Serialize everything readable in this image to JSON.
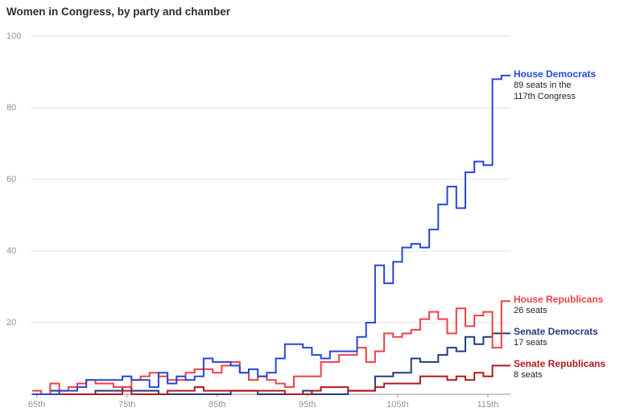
{
  "chart_data": {
    "type": "line",
    "subtype": "step",
    "title": "Women in Congress, by party and chamber",
    "xlabel": "",
    "ylabel": "",
    "x_range": [
      65,
      117
    ],
    "ylim": [
      0,
      100
    ],
    "grid": true,
    "legend_position": "right-annotations",
    "y_ticks": [
      20,
      40,
      60,
      80,
      100
    ],
    "x_ticks": [
      {
        "value": 65,
        "label": "65th"
      },
      {
        "value": 75,
        "label": "75th"
      },
      {
        "value": 85,
        "label": "85th"
      },
      {
        "value": 95,
        "label": "95th"
      },
      {
        "value": 105,
        "label": "105th"
      },
      {
        "value": 115,
        "label": "115th"
      }
    ],
    "series": [
      {
        "name": "House Democrats",
        "color": "#2546dd",
        "annotation": [
          "89 seats in the",
          "117th Congress"
        ],
        "values": [
          0,
          0,
          0,
          1,
          1,
          2,
          4,
          4,
          4,
          4,
          5,
          4,
          4,
          2,
          6,
          3,
          5,
          4,
          5,
          10,
          9,
          9,
          8,
          6,
          7,
          5,
          6,
          10,
          14,
          14,
          13,
          11,
          10,
          12,
          12,
          12,
          16,
          20,
          36,
          31,
          37,
          41,
          42,
          41,
          46,
          53,
          58,
          52,
          62,
          65,
          64,
          88,
          89
        ]
      },
      {
        "name": "House Republicans",
        "color": "#ee4046",
        "annotation": [
          "26 seats"
        ],
        "values": [
          1,
          0,
          3,
          1,
          2,
          3,
          4,
          3,
          3,
          2,
          2,
          4,
          5,
          6,
          5,
          4,
          4,
          6,
          7,
          7,
          6,
          8,
          9,
          6,
          4,
          5,
          4,
          3,
          2,
          5,
          5,
          5,
          9,
          9,
          11,
          11,
          13,
          9,
          12,
          17,
          16,
          17,
          18,
          21,
          23,
          21,
          17,
          24,
          19,
          22,
          23,
          13,
          26
        ]
      },
      {
        "name": "Senate Democrats",
        "color": "#253a7d",
        "annotation": [
          "17 seats"
        ],
        "values": [
          0,
          0,
          1,
          0,
          0,
          0,
          0,
          1,
          1,
          1,
          2,
          1,
          1,
          1,
          0,
          0,
          0,
          0,
          0,
          0,
          0,
          0,
          1,
          1,
          1,
          0,
          0,
          0,
          0,
          0,
          1,
          0,
          0,
          0,
          0,
          1,
          1,
          1,
          5,
          5,
          6,
          6,
          10,
          9,
          9,
          11,
          13,
          12,
          16,
          14,
          16,
          17,
          17
        ]
      },
      {
        "name": "Senate Republicans",
        "color": "#b5171c",
        "annotation": [
          "8 seats"
        ],
        "values": [
          0,
          0,
          0,
          0,
          0,
          0,
          0,
          0,
          0,
          0,
          1,
          0,
          0,
          0,
          0,
          1,
          1,
          1,
          2,
          1,
          1,
          1,
          1,
          1,
          1,
          1,
          1,
          1,
          0,
          0,
          0,
          1,
          2,
          2,
          2,
          1,
          1,
          1,
          2,
          3,
          3,
          3,
          3,
          5,
          5,
          5,
          4,
          5,
          4,
          6,
          5,
          8,
          8
        ]
      }
    ],
    "colors": {
      "gridline": "#e2e2e2",
      "axis": "#999999",
      "tick_text": "#949494",
      "title_text": "#2e2e2e",
      "annotation_text": "#222222"
    }
  }
}
